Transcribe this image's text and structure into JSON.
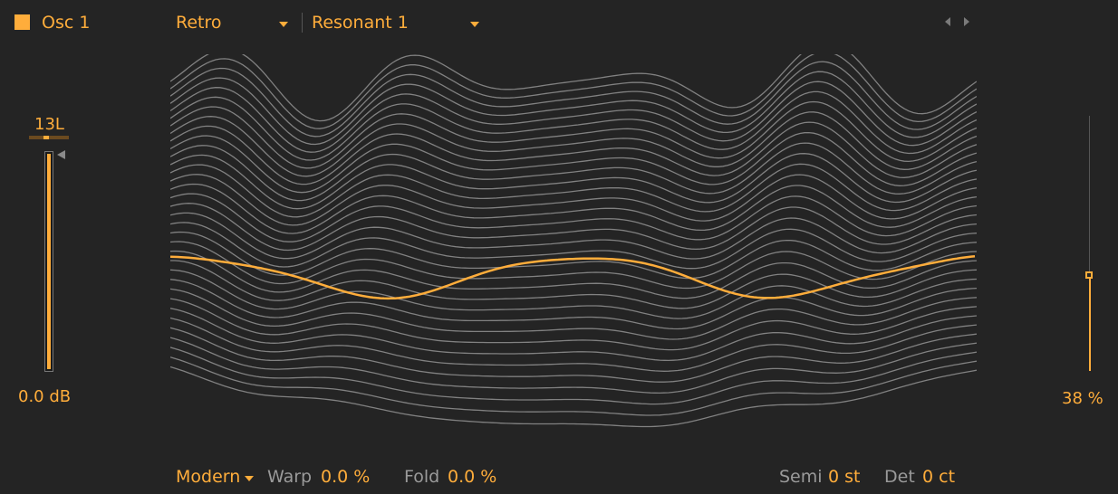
{
  "oscillator": {
    "label": "Osc 1",
    "enabled": true
  },
  "wavetable": {
    "category": "Retro",
    "name": "Resonant 1"
  },
  "gain": {
    "pan_value": "13L",
    "value": "0.0 dB"
  },
  "position": {
    "value": "38 %",
    "level": 0.38
  },
  "footer": {
    "warp_mode": "Modern",
    "warp_label": "Warp",
    "warp_value": "0.0 %",
    "fold_label": "Fold",
    "fold_value": "0.0 %",
    "semi_label": "Semi",
    "semi_value": "0 st",
    "det_label": "Det",
    "det_value": "0 ct"
  },
  "colors": {
    "accent": "#ffad3b",
    "background": "#242424",
    "wave_lines": "#a0a0a0",
    "muted_text": "#9a9a9a"
  }
}
